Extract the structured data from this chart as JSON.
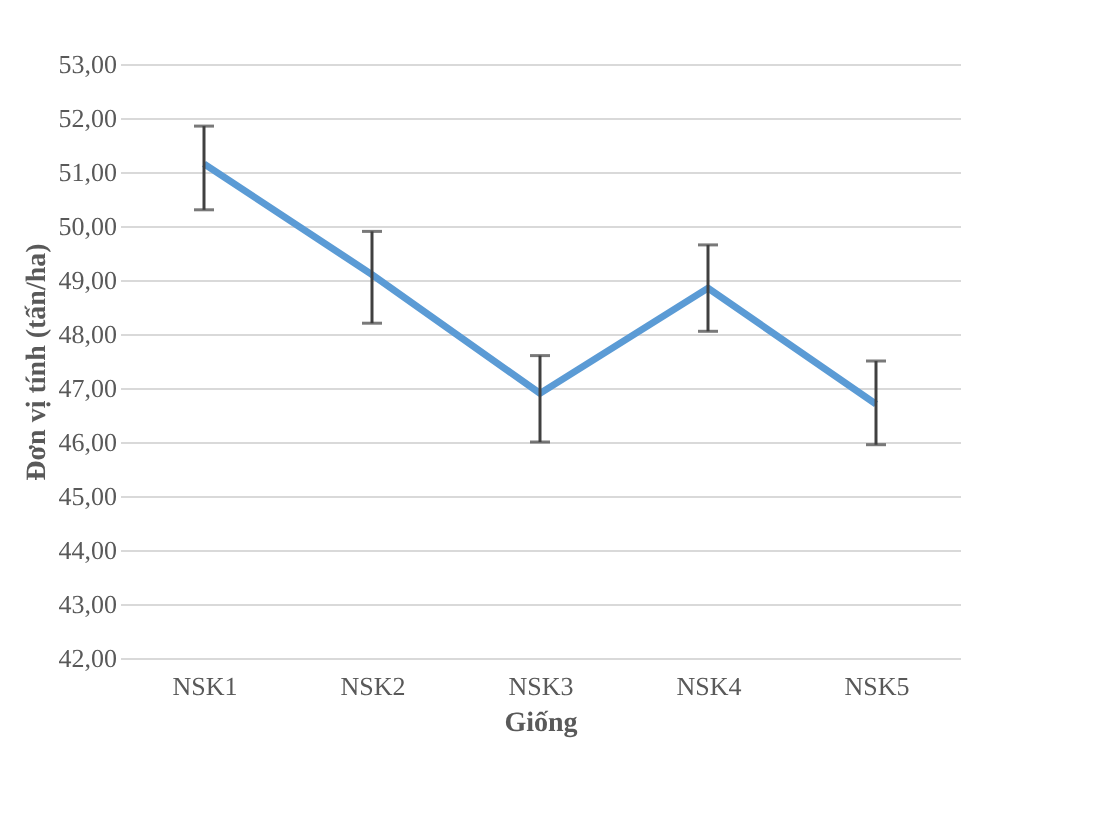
{
  "chart_data": {
    "type": "line",
    "xlabel": "Giống",
    "ylabel": "Đơn vị tính (tấn/ha)",
    "categories": [
      "NSK1",
      "NSK2",
      "NSK3",
      "NSK4",
      "NSK5"
    ],
    "series": [
      {
        "color": "#5b9bd5",
        "values": [
          51.15,
          49.1,
          46.9,
          48.85,
          46.7
        ],
        "errors": [
          [
            50.3,
            51.85
          ],
          [
            48.2,
            49.9
          ],
          [
            46.0,
            47.6
          ],
          [
            48.05,
            49.65
          ],
          [
            45.95,
            47.5
          ]
        ]
      }
    ],
    "ylim": [
      42,
      53
    ],
    "yticks": [
      {
        "value": 42,
        "label": "42,00"
      },
      {
        "value": 43,
        "label": "43,00"
      },
      {
        "value": 44,
        "label": "44,00"
      },
      {
        "value": 45,
        "label": "45,00"
      },
      {
        "value": 46,
        "label": "46,00"
      },
      {
        "value": 47,
        "label": "47,00"
      },
      {
        "value": 48,
        "label": "48,00"
      },
      {
        "value": 49,
        "label": "49,00"
      },
      {
        "value": 50,
        "label": "50,00"
      },
      {
        "value": 51,
        "label": "51,00"
      },
      {
        "value": 52,
        "label": "52,00"
      },
      {
        "value": 53,
        "label": "53,00"
      }
    ],
    "grid": "y",
    "marker": "none",
    "line_style": "solid"
  }
}
